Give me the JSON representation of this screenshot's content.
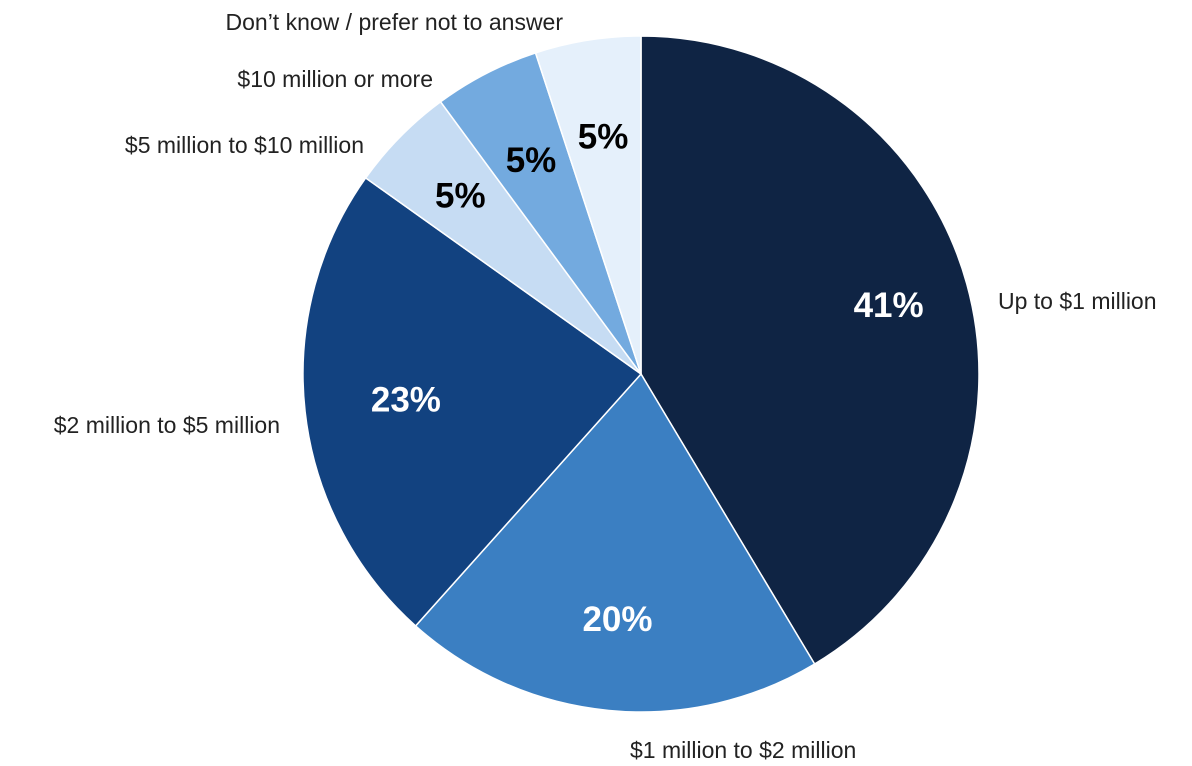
{
  "chart_data": {
    "type": "pie",
    "categories": [
      "Up to $1 million",
      "$1 million to $2 million",
      "$2 million to $5 million",
      "$5 million to $10 million",
      "$10 million or more",
      "Don’t know / prefer not to answer"
    ],
    "values": [
      41,
      20,
      23,
      5,
      5,
      5
    ],
    "value_labels": [
      "41%",
      "20%",
      "23%",
      "5%",
      "5%",
      "5%"
    ],
    "colors": [
      "#0f2444",
      "#3b7fc2",
      "#124280",
      "#c6dcf3",
      "#73aadf",
      "#e5f0fb"
    ],
    "value_label_colors": [
      "#ffffff",
      "#ffffff",
      "#ffffff",
      "#000000",
      "#000000",
      "#000000"
    ],
    "start": "12 o'clock",
    "direction": "clockwise",
    "legend": "none (direct labels)"
  }
}
